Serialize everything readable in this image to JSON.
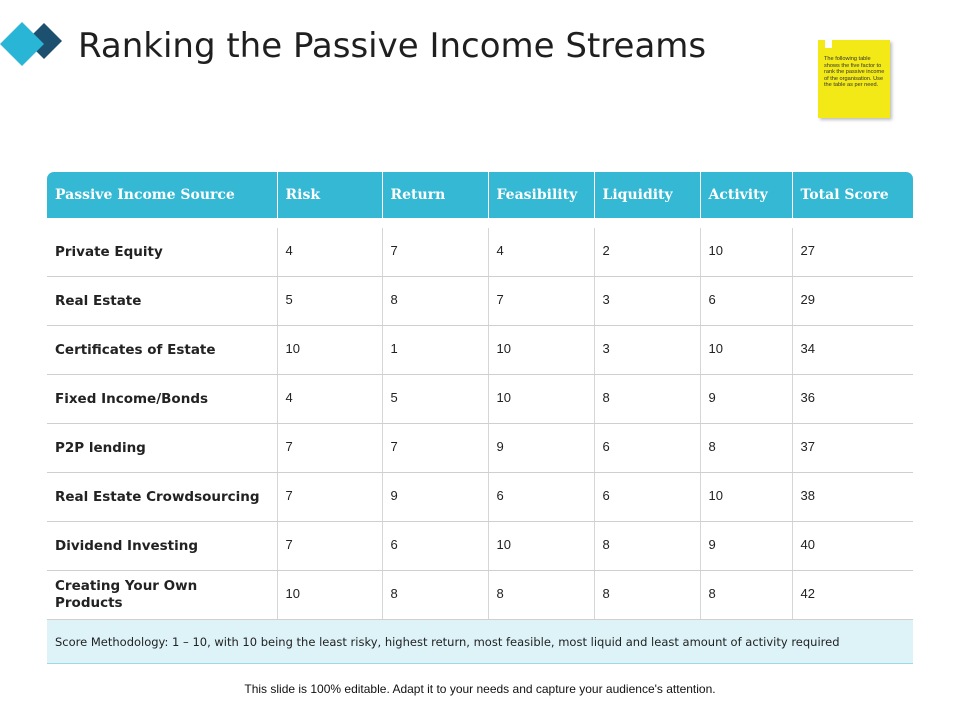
{
  "slide": {
    "title": "Ranking the Passive Income Streams",
    "note": "The following table shows the five factor to rank the passive income of the organisation. Use the table as per need.",
    "caption": "This slide is 100% editable. Adapt it to your needs and capture your audience's attention."
  },
  "colors": {
    "header": "#35b8d3",
    "footer_bg": "#ddf3f8",
    "sticky": "#f2e916",
    "logo_light": "#29b6d6",
    "logo_dark": "#1d4f6e"
  },
  "table": {
    "columns": [
      "Passive Income Source",
      "Risk",
      "Return",
      "Feasibility",
      "Liquidity",
      "Activity",
      "Total Score"
    ],
    "rows": [
      [
        "Private Equity",
        "4",
        "7",
        "4",
        "2",
        "10",
        "27"
      ],
      [
        "Real Estate",
        "5",
        "8",
        "7",
        "3",
        "6",
        "29"
      ],
      [
        "Certificates of Estate",
        "10",
        "1",
        "10",
        "3",
        "10",
        "34"
      ],
      [
        "Fixed Income/Bonds",
        "4",
        "5",
        "10",
        "8",
        "9",
        "36"
      ],
      [
        "P2P lending",
        "7",
        "7",
        "9",
        "6",
        "8",
        "37"
      ],
      [
        "Real Estate Crowdsourcing",
        "7",
        "9",
        "6",
        "6",
        "10",
        "38"
      ],
      [
        "Dividend Investing",
        "7",
        "6",
        "10",
        "8",
        "9",
        "40"
      ],
      [
        "Creating Your Own Products",
        "10",
        "8",
        "8",
        "8",
        "8",
        "42"
      ]
    ],
    "footer": "Score Methodology:  1 – 10, with 10 being the least risky, highest return, most feasible, most liquid and least amount of activity required"
  }
}
